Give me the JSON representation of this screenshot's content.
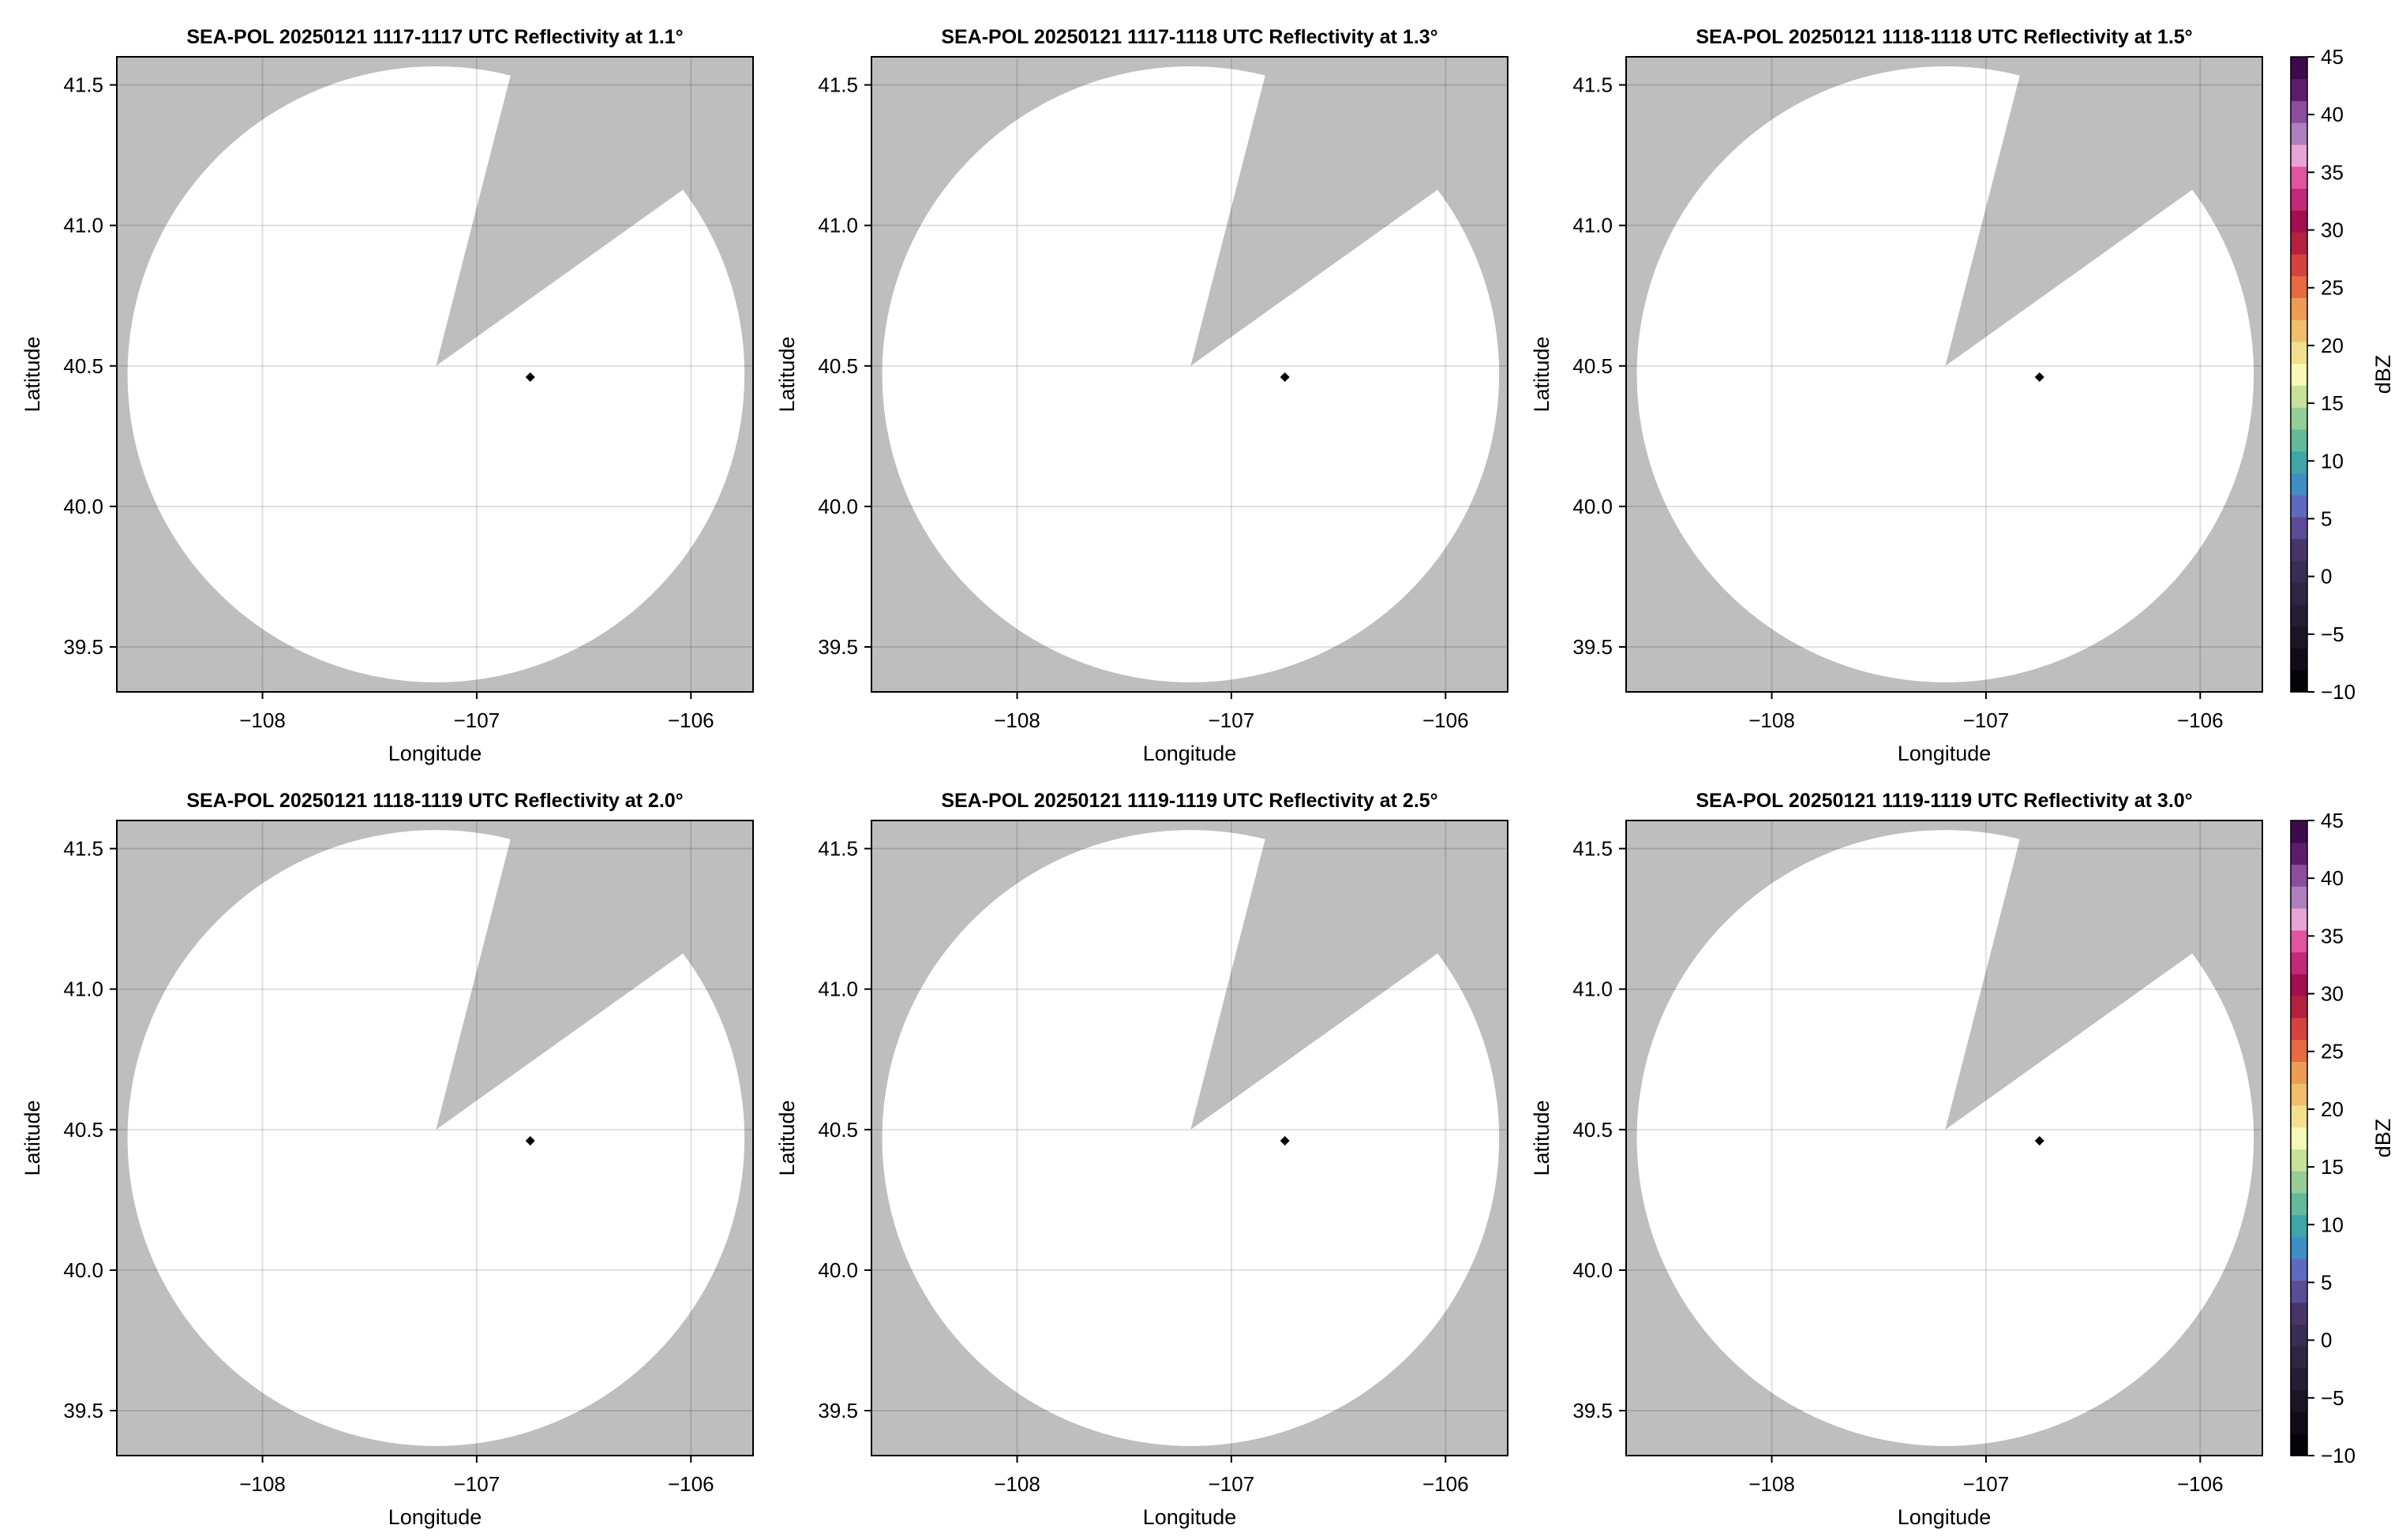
{
  "figure": {
    "colorbar": {
      "label": "dBZ",
      "range": [
        -10,
        45
      ],
      "ticks": [
        -10,
        -5,
        0,
        5,
        10,
        15,
        20,
        25,
        30,
        35,
        40,
        45
      ],
      "tick_labels": [
        "−10",
        "−5",
        "0",
        "5",
        "10",
        "15",
        "20",
        "25",
        "30",
        "35",
        "40",
        "45"
      ],
      "colors": [
        "#050308",
        "#100b16",
        "#1b1424",
        "#261c33",
        "#2f2442",
        "#3a2d55",
        "#46366a",
        "#5a4c96",
        "#5e6abf",
        "#3f8fc5",
        "#3fa6a8",
        "#63b998",
        "#96cc95",
        "#c8e198",
        "#f7f8b6",
        "#f3df8e",
        "#efbf6e",
        "#ee9b55",
        "#e86a42",
        "#d4433f",
        "#b6213f",
        "#a40d50",
        "#c42878",
        "#e0559e",
        "#e8a5d3",
        "#ad7fbe",
        "#8d4d9f",
        "#5d1c6a",
        "#3d0a4c"
      ]
    }
  },
  "chart_data": [
    {
      "type": "heatmap",
      "title": "SEA-POL 20250121 1117-1117 UTC Reflectivity at 1.1°",
      "xlabel": "Longitude",
      "ylabel": "Latitude",
      "xlim": [
        -108.68,
        -105.71
      ],
      "ylim": [
        39.34,
        41.6
      ],
      "xticks": [
        -108,
        -107,
        -106
      ],
      "xtick_labels": [
        "−108",
        "−107",
        "−106"
      ],
      "yticks": [
        39.5,
        40.0,
        40.5,
        41.0,
        41.5
      ],
      "ytick_labels": [
        "39.5",
        "40.0",
        "40.5",
        "41.0",
        "41.5"
      ],
      "grid": true,
      "missing_color": "#bebebe",
      "radar_coverage": {
        "center": [
          -107.19,
          40.47
        ],
        "radius_lon": 1.44,
        "radius_lat": 1.096
      },
      "blocked_sector": [
        [
          -107.19,
          40.5
        ],
        [
          -106.84,
          41.54
        ],
        [
          -106.05,
          41.12
        ]
      ],
      "marker": [
        -106.75,
        40.46
      ],
      "colorbar": false
    },
    {
      "type": "heatmap",
      "title": "SEA-POL 20250121 1117-1118 UTC Reflectivity at 1.3°",
      "xlabel": "Longitude",
      "ylabel": "Latitude",
      "xlim": [
        -108.68,
        -105.71
      ],
      "ylim": [
        39.34,
        41.6
      ],
      "xticks": [
        -108,
        -107,
        -106
      ],
      "xtick_labels": [
        "−108",
        "−107",
        "−106"
      ],
      "yticks": [
        39.5,
        40.0,
        40.5,
        41.0,
        41.5
      ],
      "ytick_labels": [
        "39.5",
        "40.0",
        "40.5",
        "41.0",
        "41.5"
      ],
      "grid": true,
      "missing_color": "#bebebe",
      "radar_coverage": {
        "center": [
          -107.19,
          40.47
        ],
        "radius_lon": 1.44,
        "radius_lat": 1.096
      },
      "blocked_sector": [
        [
          -107.19,
          40.5
        ],
        [
          -106.84,
          41.54
        ],
        [
          -106.05,
          41.12
        ]
      ],
      "marker": [
        -106.75,
        40.46
      ],
      "colorbar": false
    },
    {
      "type": "heatmap",
      "title": "SEA-POL 20250121 1118-1118 UTC Reflectivity at 1.5°",
      "xlabel": "Longitude",
      "ylabel": "Latitude",
      "xlim": [
        -108.68,
        -105.71
      ],
      "ylim": [
        39.34,
        41.6
      ],
      "xticks": [
        -108,
        -107,
        -106
      ],
      "xtick_labels": [
        "−108",
        "−107",
        "−106"
      ],
      "yticks": [
        39.5,
        40.0,
        40.5,
        41.0,
        41.5
      ],
      "ytick_labels": [
        "39.5",
        "40.0",
        "40.5",
        "41.0",
        "41.5"
      ],
      "grid": true,
      "missing_color": "#bebebe",
      "radar_coverage": {
        "center": [
          -107.19,
          40.47
        ],
        "radius_lon": 1.44,
        "radius_lat": 1.096
      },
      "blocked_sector": [
        [
          -107.19,
          40.5
        ],
        [
          -106.84,
          41.54
        ],
        [
          -106.05,
          41.12
        ]
      ],
      "marker": [
        -106.75,
        40.46
      ],
      "colorbar": true
    },
    {
      "type": "heatmap",
      "title": "SEA-POL 20250121 1118-1119 UTC Reflectivity at 2.0°",
      "xlabel": "Longitude",
      "ylabel": "Latitude",
      "xlim": [
        -108.68,
        -105.71
      ],
      "ylim": [
        39.34,
        41.6
      ],
      "xticks": [
        -108,
        -107,
        -106
      ],
      "xtick_labels": [
        "−108",
        "−107",
        "−106"
      ],
      "yticks": [
        39.5,
        40.0,
        40.5,
        41.0,
        41.5
      ],
      "ytick_labels": [
        "39.5",
        "40.0",
        "40.5",
        "41.0",
        "41.5"
      ],
      "grid": true,
      "missing_color": "#bebebe",
      "radar_coverage": {
        "center": [
          -107.19,
          40.47
        ],
        "radius_lon": 1.44,
        "radius_lat": 1.096
      },
      "blocked_sector": [
        [
          -107.19,
          40.5
        ],
        [
          -106.84,
          41.54
        ],
        [
          -106.05,
          41.12
        ]
      ],
      "marker": [
        -106.75,
        40.46
      ],
      "colorbar": false
    },
    {
      "type": "heatmap",
      "title": "SEA-POL 20250121 1119-1119 UTC Reflectivity at 2.5°",
      "xlabel": "Longitude",
      "ylabel": "Latitude",
      "xlim": [
        -108.68,
        -105.71
      ],
      "ylim": [
        39.34,
        41.6
      ],
      "xticks": [
        -108,
        -107,
        -106
      ],
      "xtick_labels": [
        "−108",
        "−107",
        "−106"
      ],
      "yticks": [
        39.5,
        40.0,
        40.5,
        41.0,
        41.5
      ],
      "ytick_labels": [
        "39.5",
        "40.0",
        "40.5",
        "41.0",
        "41.5"
      ],
      "grid": true,
      "missing_color": "#bebebe",
      "radar_coverage": {
        "center": [
          -107.19,
          40.47
        ],
        "radius_lon": 1.44,
        "radius_lat": 1.096
      },
      "blocked_sector": [
        [
          -107.19,
          40.5
        ],
        [
          -106.84,
          41.54
        ],
        [
          -106.05,
          41.12
        ]
      ],
      "marker": [
        -106.75,
        40.46
      ],
      "colorbar": false
    },
    {
      "type": "heatmap",
      "title": "SEA-POL 20250121 1119-1119 UTC Reflectivity at 3.0°",
      "xlabel": "Longitude",
      "ylabel": "Latitude",
      "xlim": [
        -108.68,
        -105.71
      ],
      "ylim": [
        39.34,
        41.6
      ],
      "xticks": [
        -108,
        -107,
        -106
      ],
      "xtick_labels": [
        "−108",
        "−107",
        "−106"
      ],
      "yticks": [
        39.5,
        40.0,
        40.5,
        41.0,
        41.5
      ],
      "ytick_labels": [
        "39.5",
        "40.0",
        "40.5",
        "41.0",
        "41.5"
      ],
      "grid": true,
      "missing_color": "#bebebe",
      "radar_coverage": {
        "center": [
          -107.19,
          40.47
        ],
        "radius_lon": 1.44,
        "radius_lat": 1.096
      },
      "blocked_sector": [
        [
          -107.19,
          40.5
        ],
        [
          -106.84,
          41.54
        ],
        [
          -106.05,
          41.12
        ]
      ],
      "marker": [
        -106.75,
        40.46
      ],
      "colorbar": true
    }
  ]
}
